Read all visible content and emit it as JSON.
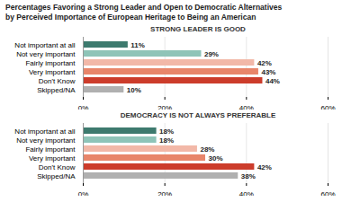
{
  "title": [
    "Percentages Favoring a Strong Leader and Open to Democratic Alternatives",
    "by Perceived Importance of European Heritage to Being an American"
  ],
  "chart_data": [
    {
      "type": "bar",
      "orientation": "horizontal",
      "title": "STRONG LEADER IS GOOD",
      "categories": [
        "Not important at all",
        "Not very important",
        "Fairly important",
        "Very important",
        "Don't Know",
        "Skipped/NA"
      ],
      "values": [
        11,
        29,
        42,
        43,
        44,
        10
      ],
      "value_labels": [
        "11%",
        "29%",
        "42%",
        "43%",
        "44%",
        "10%"
      ],
      "colors": [
        "#3d7a6e",
        "#8ec4b8",
        "#f2b8a8",
        "#e8856a",
        "#cc3c2b",
        "#b0b0b0"
      ],
      "xlim": [
        0,
        60
      ],
      "xticks": [
        {
          "value": 0,
          "label": "0%"
        },
        {
          "value": 20,
          "label": "20%"
        },
        {
          "value": 40,
          "label": "40%"
        },
        {
          "value": 60,
          "label": "60%"
        }
      ],
      "grid": "x",
      "data_labels": true
    },
    {
      "type": "bar",
      "orientation": "horizontal",
      "title": "DEMOCRACY IS NOT ALWAYS PREFERABLE",
      "categories": [
        "Not important at all",
        "Not very important",
        "Fairly important",
        "Very important",
        "Don't Know",
        "Skipped/NA"
      ],
      "values": [
        18,
        18,
        28,
        30,
        42,
        38
      ],
      "value_labels": [
        "18%",
        "18%",
        "28%",
        "30%",
        "42%",
        "38%"
      ],
      "colors": [
        "#3d7a6e",
        "#8ec4b8",
        "#f2b8a8",
        "#e8856a",
        "#cc3c2b",
        "#b0b0b0"
      ],
      "xlim": [
        0,
        60
      ],
      "xticks": [
        {
          "value": 0,
          "label": "0%"
        },
        {
          "value": 20,
          "label": "20%"
        },
        {
          "value": 40,
          "label": "40%"
        },
        {
          "value": 60,
          "label": "60%"
        }
      ],
      "grid": "x",
      "data_labels": true
    }
  ]
}
